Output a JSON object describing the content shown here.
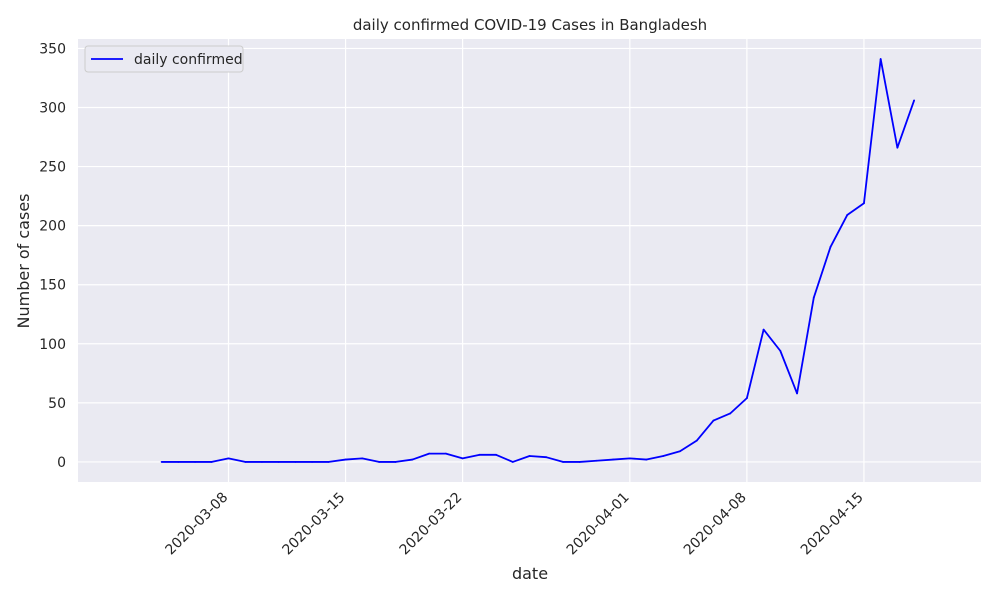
{
  "chart_data": {
    "type": "line",
    "title": "daily confirmed COVID-19 Cases in Bangladesh",
    "xlabel": "date",
    "ylabel": "Number of cases",
    "ylim": [
      -17,
      358
    ],
    "xlim": [
      "2020-02-28",
      "2020-04-22"
    ],
    "y_ticks": [
      0,
      50,
      100,
      150,
      200,
      250,
      300,
      350
    ],
    "x_ticks": [
      "2020-03-08",
      "2020-03-15",
      "2020-03-22",
      "2020-04-01",
      "2020-04-08",
      "2020-04-15"
    ],
    "grid": true,
    "legend_position": "top-left",
    "colors": {
      "background": "#eaeaf2",
      "grid": "#ffffff",
      "line": "#0000ff",
      "text": "#262626"
    },
    "series": [
      {
        "name": "daily confirmed",
        "x": [
          "2020-03-04",
          "2020-03-05",
          "2020-03-06",
          "2020-03-07",
          "2020-03-08",
          "2020-03-09",
          "2020-03-10",
          "2020-03-11",
          "2020-03-12",
          "2020-03-13",
          "2020-03-14",
          "2020-03-15",
          "2020-03-16",
          "2020-03-17",
          "2020-03-18",
          "2020-03-19",
          "2020-03-20",
          "2020-03-21",
          "2020-03-22",
          "2020-03-23",
          "2020-03-24",
          "2020-03-25",
          "2020-03-26",
          "2020-03-27",
          "2020-03-28",
          "2020-03-29",
          "2020-03-30",
          "2020-03-31",
          "2020-04-01",
          "2020-04-02",
          "2020-04-03",
          "2020-04-04",
          "2020-04-05",
          "2020-04-06",
          "2020-04-07",
          "2020-04-08",
          "2020-04-09",
          "2020-04-10",
          "2020-04-11",
          "2020-04-12",
          "2020-04-13",
          "2020-04-14",
          "2020-04-15",
          "2020-04-16",
          "2020-04-17",
          "2020-04-18"
        ],
        "values": [
          0,
          0,
          0,
          0,
          3,
          0,
          0,
          0,
          0,
          0,
          0,
          2,
          3,
          0,
          0,
          2,
          7,
          7,
          3,
          6,
          6,
          0,
          5,
          4,
          0,
          0,
          1,
          2,
          3,
          2,
          5,
          9,
          18,
          35,
          41,
          54,
          112,
          94,
          58,
          139,
          182,
          209,
          219,
          341,
          266,
          306
        ]
      }
    ]
  }
}
